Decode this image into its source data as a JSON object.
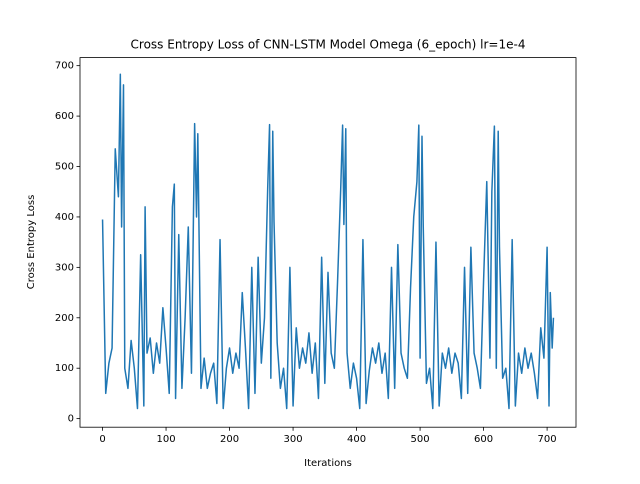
{
  "chart_data": {
    "type": "line",
    "title": "Cross Entropy Loss of CNN-LSTM Model Omega (6_epoch) lr=1e-4",
    "x_label": "Iterations",
    "y_label": "Cross Entropy Loss",
    "x": [
      0,
      5,
      10,
      15,
      20,
      25,
      28,
      30,
      33,
      35,
      40,
      45,
      50,
      55,
      60,
      65,
      67,
      70,
      75,
      80,
      85,
      90,
      95,
      100,
      105,
      110,
      113,
      115,
      120,
      125,
      130,
      135,
      140,
      145,
      148,
      150,
      155,
      160,
      165,
      170,
      175,
      180,
      185,
      190,
      195,
      200,
      205,
      210,
      215,
      220,
      225,
      230,
      235,
      240,
      245,
      250,
      255,
      260,
      263,
      265,
      268,
      270,
      275,
      280,
      285,
      290,
      295,
      300,
      305,
      310,
      315,
      320,
      325,
      330,
      335,
      340,
      345,
      350,
      355,
      360,
      365,
      370,
      375,
      378,
      380,
      383,
      385,
      390,
      395,
      400,
      405,
      410,
      415,
      420,
      425,
      430,
      435,
      440,
      445,
      450,
      455,
      460,
      465,
      470,
      475,
      480,
      485,
      490,
      495,
      498,
      500,
      503,
      505,
      510,
      515,
      520,
      525,
      530,
      535,
      540,
      545,
      550,
      555,
      560,
      565,
      570,
      575,
      580,
      585,
      590,
      595,
      600,
      605,
      610,
      613,
      617,
      620,
      623,
      625,
      630,
      635,
      640,
      645,
      650,
      655,
      660,
      665,
      670,
      675,
      680,
      685,
      690,
      695,
      700,
      703,
      705,
      708,
      710
    ],
    "series": [
      {
        "name": "loss",
        "color": "#1f77b4",
        "values": [
          395,
          50,
          110,
          140,
          535,
          440,
          683,
          380,
          662,
          100,
          60,
          155,
          100,
          20,
          325,
          25,
          420,
          130,
          160,
          90,
          150,
          110,
          220,
          140,
          50,
          420,
          465,
          40,
          365,
          60,
          200,
          380,
          90,
          585,
          400,
          565,
          60,
          120,
          60,
          90,
          110,
          30,
          355,
          20,
          100,
          140,
          90,
          130,
          100,
          250,
          140,
          20,
          300,
          50,
          320,
          110,
          200,
          455,
          583,
          80,
          570,
          390,
          150,
          60,
          100,
          20,
          300,
          25,
          180,
          100,
          140,
          110,
          170,
          90,
          150,
          40,
          320,
          70,
          290,
          130,
          100,
          270,
          455,
          582,
          385,
          575,
          130,
          60,
          110,
          80,
          20,
          355,
          30,
          95,
          140,
          110,
          150,
          90,
          130,
          40,
          300,
          60,
          345,
          130,
          100,
          80,
          260,
          400,
          470,
          582,
          120,
          560,
          380,
          70,
          100,
          20,
          350,
          25,
          130,
          100,
          140,
          90,
          130,
          110,
          40,
          300,
          50,
          340,
          130,
          100,
          60,
          275,
          470,
          120,
          450,
          580,
          100,
          570,
          340,
          80,
          100,
          20,
          355,
          25,
          130,
          90,
          140,
          100,
          130,
          90,
          40,
          180,
          120,
          340,
          25,
          250,
          140,
          200
        ]
      }
    ],
    "xlim": [
      -35.5,
      745.5
    ],
    "ylim": [
      -17,
      716
    ],
    "xticks": [
      0,
      100,
      200,
      300,
      400,
      500,
      600,
      700
    ],
    "yticks": [
      0,
      100,
      200,
      300,
      400,
      500,
      600,
      700
    ]
  }
}
